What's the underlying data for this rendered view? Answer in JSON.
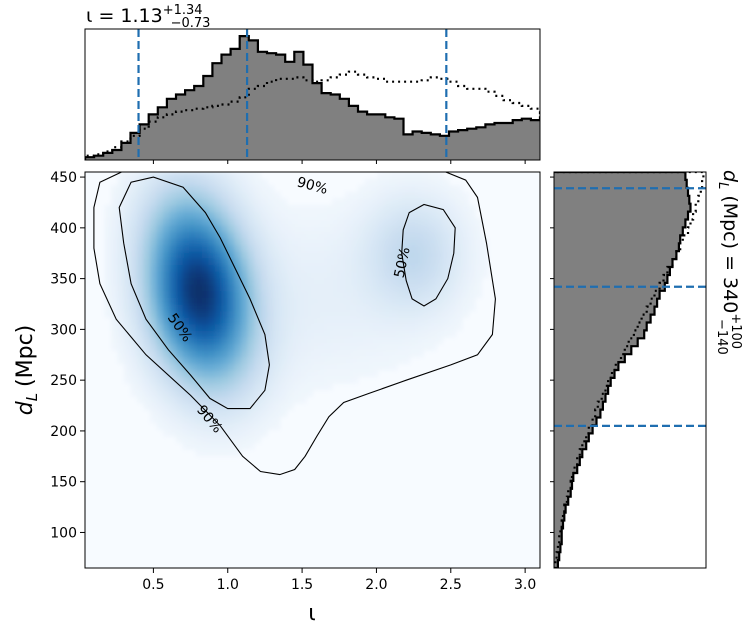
{
  "chart_data": [
    {
      "panel": "joint",
      "type": "heatmap",
      "xlabel": "ι",
      "ylabel_main": "d",
      "ylabel_sub": "L",
      "ylabel_unit": "(Mpc)",
      "xlim": [
        0.04,
        3.1
      ],
      "ylim": [
        65,
        455
      ],
      "xticks": [
        0.5,
        1.0,
        1.5,
        2.0,
        2.5,
        3.0
      ],
      "xtick_labels": [
        "0.5",
        "1.0",
        "1.5",
        "2.0",
        "2.5",
        "3.0"
      ],
      "yticks": [
        100,
        150,
        200,
        250,
        300,
        350,
        400,
        450
      ],
      "ytick_labels": [
        "100",
        "150",
        "200",
        "250",
        "300",
        "350",
        "400",
        "450"
      ],
      "colormap": "Blues",
      "density_peaks": [
        {
          "x": 0.82,
          "y": 342,
          "weight": 1.0
        },
        {
          "x": 0.78,
          "y": 315,
          "weight": 0.45
        },
        {
          "x": 0.95,
          "y": 278,
          "weight": 0.4
        },
        {
          "x": 0.7,
          "y": 395,
          "weight": 0.55
        },
        {
          "x": 2.25,
          "y": 375,
          "weight": 0.35
        },
        {
          "x": 1.6,
          "y": 330,
          "weight": 0.1
        }
      ],
      "contours": [
        {
          "label": "90%",
          "points": [
            [
              0.1,
              420
            ],
            [
              0.14,
              445
            ],
            [
              0.3,
              456
            ],
            [
              1.4,
              456
            ],
            [
              2.05,
              458
            ],
            [
              2.45,
              456
            ],
            [
              2.6,
              447
            ],
            [
              2.68,
              430
            ],
            [
              2.74,
              385
            ],
            [
              2.8,
              330
            ],
            [
              2.78,
              295
            ],
            [
              2.68,
              275
            ],
            [
              2.5,
              265
            ],
            [
              2.2,
              250
            ],
            [
              1.95,
              237
            ],
            [
              1.78,
              228
            ],
            [
              1.68,
              214
            ],
            [
              1.6,
              195
            ],
            [
              1.52,
              175
            ],
            [
              1.45,
              162
            ],
            [
              1.35,
              157
            ],
            [
              1.22,
              160
            ],
            [
              1.1,
              175
            ],
            [
              0.95,
              205
            ],
            [
              0.75,
              235
            ],
            [
              0.45,
              275
            ],
            [
              0.25,
              310
            ],
            [
              0.14,
              345
            ],
            [
              0.1,
              380
            ],
            [
              0.1,
              420
            ]
          ]
        },
        {
          "label": "50%",
          "points": [
            [
              0.27,
              420
            ],
            [
              0.35,
              445
            ],
            [
              0.5,
              450
            ],
            [
              0.7,
              440
            ],
            [
              0.85,
              415
            ],
            [
              0.95,
              390
            ],
            [
              1.05,
              360
            ],
            [
              1.15,
              330
            ],
            [
              1.25,
              295
            ],
            [
              1.28,
              265
            ],
            [
              1.25,
              240
            ],
            [
              1.15,
              222
            ],
            [
              1.0,
              222
            ],
            [
              0.88,
              232
            ],
            [
              0.75,
              255
            ],
            [
              0.6,
              280
            ],
            [
              0.45,
              310
            ],
            [
              0.35,
              345
            ],
            [
              0.3,
              385
            ],
            [
              0.27,
              420
            ]
          ]
        },
        {
          "label": "50%",
          "points": [
            [
              2.22,
              415
            ],
            [
              2.32,
              423
            ],
            [
              2.45,
              418
            ],
            [
              2.53,
              400
            ],
            [
              2.52,
              375
            ],
            [
              2.48,
              350
            ],
            [
              2.4,
              330
            ],
            [
              2.32,
              323
            ],
            [
              2.24,
              330
            ],
            [
              2.2,
              348
            ],
            [
              2.17,
              375
            ],
            [
              2.18,
              398
            ],
            [
              2.22,
              415
            ]
          ]
        }
      ]
    },
    {
      "panel": "top-marginal",
      "type": "histogram",
      "title_prefix": "ι = 1.13",
      "title_sup": "+1.34",
      "title_sub": "−0.73",
      "xlim": [
        0.04,
        3.1
      ],
      "bin_edges_start": 0.04,
      "bin_width": 0.0612,
      "filled_counts": [
        2,
        3,
        5,
        7,
        12,
        19,
        25,
        32,
        37,
        43,
        46,
        49,
        52,
        59,
        68,
        74,
        78,
        87,
        84,
        76,
        75,
        74,
        69,
        76,
        67,
        54,
        47,
        46,
        43,
        38,
        34,
        32,
        32,
        30,
        29,
        18,
        20,
        19,
        18,
        17,
        20,
        21,
        22,
        23,
        25,
        26,
        26,
        28,
        29,
        28,
        30,
        20,
        12,
        10,
        8,
        7,
        5,
        4,
        3,
        1
      ],
      "reference_counts": [
        3,
        4,
        6,
        9,
        13,
        17,
        22,
        27,
        30,
        32,
        34,
        35,
        36,
        37,
        38,
        39,
        41,
        44,
        50,
        52,
        55,
        57,
        57,
        58,
        56,
        55,
        56,
        58,
        60,
        62,
        60,
        58,
        57,
        55,
        55,
        55,
        55,
        56,
        58,
        57,
        55,
        52,
        50,
        50,
        48,
        45,
        42,
        40,
        38,
        36,
        33,
        30,
        27,
        25,
        22,
        20,
        17,
        14,
        11,
        8
      ],
      "quantile_lines": [
        0.4,
        1.13,
        2.47
      ],
      "ymax": 92
    },
    {
      "panel": "right-marginal",
      "type": "histogram",
      "title_prefix": "d",
      "title_sub_var": "L",
      "title_unit": "(Mpc) = 340",
      "title_sup": "+100",
      "title_sub": "−140",
      "ylim": [
        65,
        455
      ],
      "bin_edges_start": 65,
      "bin_width": 7.8,
      "filled_counts": [
        3,
        4,
        5,
        6,
        6,
        7,
        8,
        9,
        11,
        13,
        14,
        15,
        18,
        20,
        22,
        25,
        27,
        30,
        33,
        36,
        38,
        40,
        42,
        44,
        47,
        50,
        55,
        60,
        65,
        70,
        72,
        75,
        78,
        80,
        82,
        86,
        88,
        90,
        92,
        95,
        97,
        98,
        100,
        102,
        104,
        106,
        105,
        104,
        103,
        102
      ],
      "reference_counts": [
        1,
        2,
        3,
        4,
        5,
        6,
        7,
        8,
        10,
        11,
        13,
        14,
        16,
        18,
        20,
        22,
        25,
        27,
        30,
        32,
        34,
        37,
        40,
        42,
        45,
        48,
        52,
        55,
        58,
        62,
        65,
        68,
        72,
        75,
        78,
        82,
        85,
        88,
        92,
        95,
        98,
        100,
        104,
        106,
        108,
        110,
        112,
        114,
        115,
        116
      ],
      "quantile_lines": [
        205,
        342,
        439
      ],
      "xmax": 118
    }
  ]
}
